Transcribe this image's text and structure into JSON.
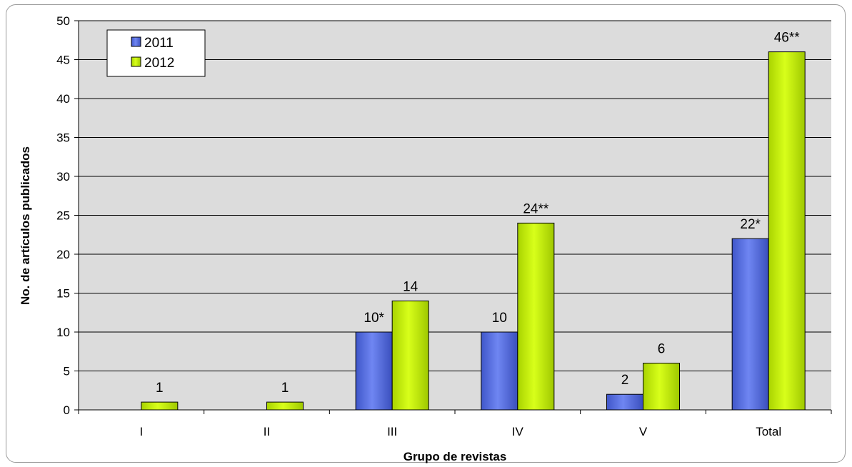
{
  "chart_data": {
    "type": "bar",
    "categories": [
      "I",
      "II",
      "III",
      "IV",
      "V",
      "Total"
    ],
    "series": [
      {
        "name": "2011",
        "values": [
          0,
          0,
          10,
          10,
          2,
          22
        ],
        "labels": [
          "",
          "",
          "10*",
          "10",
          "2",
          "22*"
        ],
        "color": "#5b72e6"
      },
      {
        "name": "2012",
        "values": [
          1,
          1,
          14,
          24,
          6,
          46
        ],
        "labels": [
          "1",
          "1",
          "14",
          "24**",
          "6",
          "46**"
        ],
        "color": "#c6f000"
      }
    ],
    "title": "",
    "xlabel": "Grupo de revistas",
    "ylabel": "No. de artículos publicados",
    "ylim": [
      0,
      50
    ],
    "yticks": [
      0,
      5,
      10,
      15,
      20,
      25,
      30,
      35,
      40,
      45,
      50
    ],
    "grid": true,
    "legend_position": "top-left",
    "plot_background": "#dcdcdc"
  }
}
